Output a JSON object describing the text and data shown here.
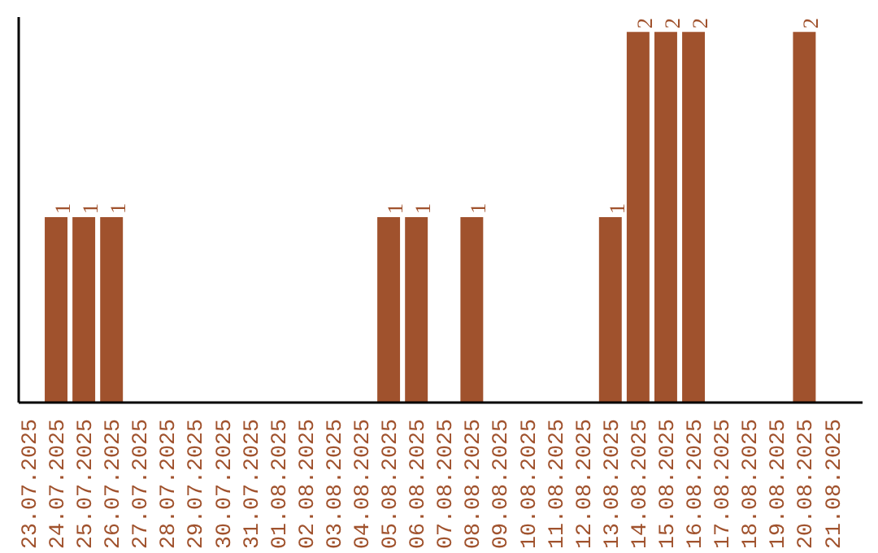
{
  "chart_data": {
    "type": "bar",
    "categories": [
      "23.07.2025",
      "24.07.2025",
      "25.07.2025",
      "26.07.2025",
      "27.07.2025",
      "28.07.2025",
      "29.07.2025",
      "30.07.2025",
      "31.07.2025",
      "01.08.2025",
      "02.08.2025",
      "03.08.2025",
      "04.08.2025",
      "05.08.2025",
      "06.08.2025",
      "07.08.2025",
      "08.08.2025",
      "09.08.2025",
      "10.08.2025",
      "11.08.2025",
      "12.08.2025",
      "13.08.2025",
      "14.08.2025",
      "15.08.2025",
      "16.08.2025",
      "17.08.2025",
      "18.08.2025",
      "19.08.2025",
      "20.08.2025",
      "21.08.2025"
    ],
    "values": [
      0,
      1,
      1,
      1,
      0,
      0,
      0,
      0,
      0,
      0,
      0,
      0,
      0,
      1,
      1,
      0,
      1,
      0,
      0,
      0,
      0,
      1,
      2,
      2,
      2,
      0,
      0,
      0,
      2,
      0
    ],
    "value_labels": [
      null,
      "1",
      "1",
      "1",
      null,
      null,
      null,
      null,
      null,
      null,
      null,
      null,
      null,
      "1",
      "1",
      null,
      "1",
      null,
      null,
      null,
      null,
      "1",
      "2",
      "2",
      "2",
      null,
      null,
      null,
      "2",
      null
    ],
    "color": "#a0522d",
    "grid": false,
    "tick_labels": "x"
  }
}
